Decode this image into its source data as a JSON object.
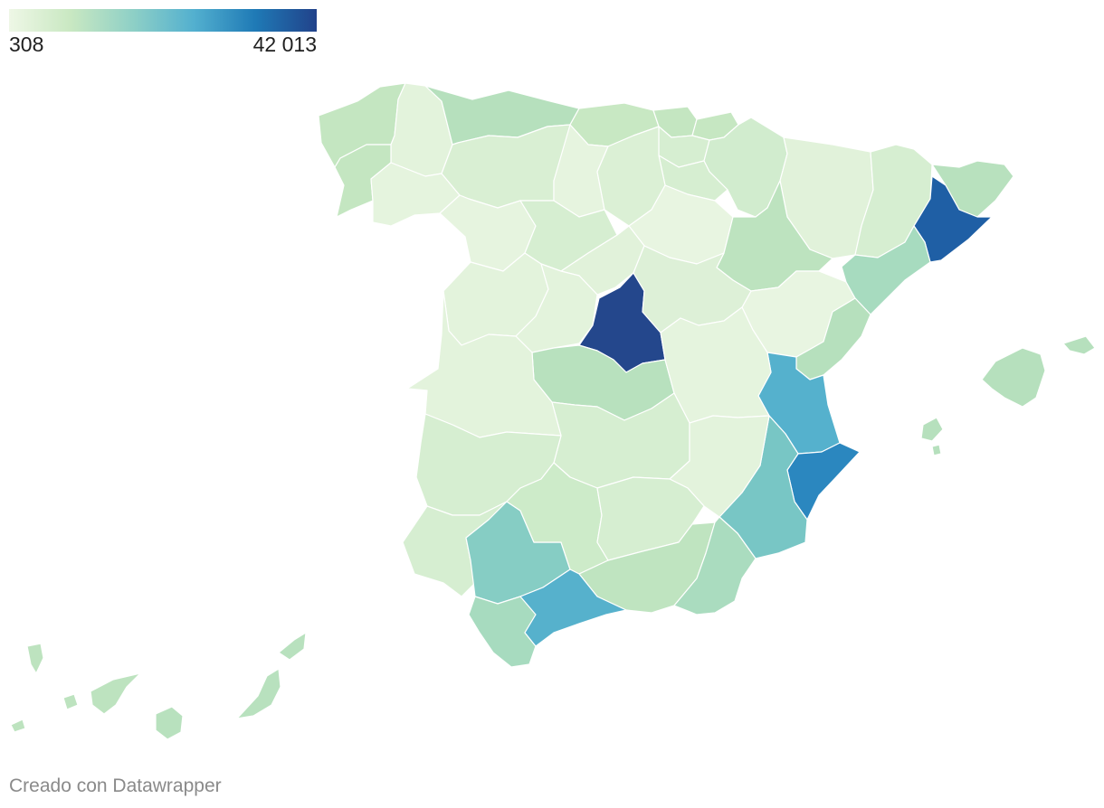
{
  "legend": {
    "min_label": "308",
    "max_label": "42 013",
    "gradient": [
      "#eef7e6",
      "#c9e8c2",
      "#8fd0c6",
      "#53b0cf",
      "#1f7ab6",
      "#21428a"
    ]
  },
  "map": {
    "type": "choropleth",
    "regions": [
      {
        "id": "a-coruna",
        "value": 1650,
        "color": "#c4e6c1"
      },
      {
        "id": "lugo",
        "value": 700,
        "color": "#e3f3dc"
      },
      {
        "id": "pontevedra",
        "value": 1700,
        "color": "#c4e6c1"
      },
      {
        "id": "ourense",
        "value": 500,
        "color": "#e5f4de"
      },
      {
        "id": "asturias",
        "value": 2200,
        "color": "#b6e0bd"
      },
      {
        "id": "cantabria",
        "value": 1400,
        "color": "#c8e8c3"
      },
      {
        "id": "vizcaya",
        "value": 1600,
        "color": "#c4e6c1"
      },
      {
        "id": "guipuzcoa",
        "value": 1500,
        "color": "#c6e7c2"
      },
      {
        "id": "alava",
        "value": 900,
        "color": "#d6eed1"
      },
      {
        "id": "navarra",
        "value": 1100,
        "color": "#d1ecce"
      },
      {
        "id": "la-rioja",
        "value": 900,
        "color": "#d6eed1"
      },
      {
        "id": "leon",
        "value": 800,
        "color": "#d9efd3"
      },
      {
        "id": "palencia",
        "value": 400,
        "color": "#e6f4df"
      },
      {
        "id": "burgos",
        "value": 800,
        "color": "#dbf0d5"
      },
      {
        "id": "zamora",
        "value": 400,
        "color": "#e6f4df"
      },
      {
        "id": "valladolid",
        "value": 1100,
        "color": "#d6eed1"
      },
      {
        "id": "soria",
        "value": 308,
        "color": "#e8f5e1"
      },
      {
        "id": "salamanca",
        "value": 700,
        "color": "#e3f3dc"
      },
      {
        "id": "segovia",
        "value": 700,
        "color": "#e1f2da"
      },
      {
        "id": "avila",
        "value": 500,
        "color": "#e3f3dc"
      },
      {
        "id": "guadalajara",
        "value": 800,
        "color": "#ddf0d7"
      },
      {
        "id": "huesca",
        "value": 600,
        "color": "#e1f2da"
      },
      {
        "id": "zaragoza",
        "value": 2100,
        "color": "#bde3bf"
      },
      {
        "id": "teruel",
        "value": 308,
        "color": "#e8f5e1"
      },
      {
        "id": "lleida",
        "value": 900,
        "color": "#d6eed1"
      },
      {
        "id": "girona",
        "value": 2300,
        "color": "#b8e1be"
      },
      {
        "id": "barcelona",
        "value": 38000,
        "color": "#1f5fa5"
      },
      {
        "id": "tarragona",
        "value": 3200,
        "color": "#a7dbbf"
      },
      {
        "id": "castellon",
        "value": 2600,
        "color": "#b6e0bd"
      },
      {
        "id": "valencia",
        "value": 13500,
        "color": "#55b1cd"
      },
      {
        "id": "alicante",
        "value": 22000,
        "color": "#2b87bf"
      },
      {
        "id": "murcia",
        "value": 8500,
        "color": "#78c6c5"
      },
      {
        "id": "madrid",
        "value": 42013,
        "color": "#24478c"
      },
      {
        "id": "toledo",
        "value": 2300,
        "color": "#b8e1be"
      },
      {
        "id": "cuenca",
        "value": 400,
        "color": "#e5f4de"
      },
      {
        "id": "caceres",
        "value": 500,
        "color": "#e3f3dc"
      },
      {
        "id": "badajoz",
        "value": 1000,
        "color": "#d6eed1"
      },
      {
        "id": "ciudad-real",
        "value": 1000,
        "color": "#d6eed1"
      },
      {
        "id": "albacete",
        "value": 600,
        "color": "#e3f3dc"
      },
      {
        "id": "huelva",
        "value": 1100,
        "color": "#d6eed1"
      },
      {
        "id": "sevilla",
        "value": 7600,
        "color": "#86cdc4"
      },
      {
        "id": "cordoba",
        "value": 1500,
        "color": "#cdebc9"
      },
      {
        "id": "jaen",
        "value": 1000,
        "color": "#d6eed1"
      },
      {
        "id": "granada",
        "value": 2300,
        "color": "#bfe4c0"
      },
      {
        "id": "almeria",
        "value": 3100,
        "color": "#aadcbf"
      },
      {
        "id": "cadiz",
        "value": 3600,
        "color": "#a7dbbf"
      },
      {
        "id": "malaga",
        "value": 13800,
        "color": "#56b1cc"
      },
      {
        "id": "mallorca",
        "value": 2600,
        "color": "#b6e0bd"
      },
      {
        "id": "menorca",
        "value": 2600,
        "color": "#b6e0bd"
      },
      {
        "id": "ibiza",
        "value": 2600,
        "color": "#b6e0bd"
      },
      {
        "id": "canarias-oeste",
        "value": 2100,
        "color": "#bde3bf"
      },
      {
        "id": "canarias-este",
        "value": 2200,
        "color": "#b8e1be"
      }
    ]
  },
  "footer": {
    "credit": "Creado con Datawrapper"
  }
}
